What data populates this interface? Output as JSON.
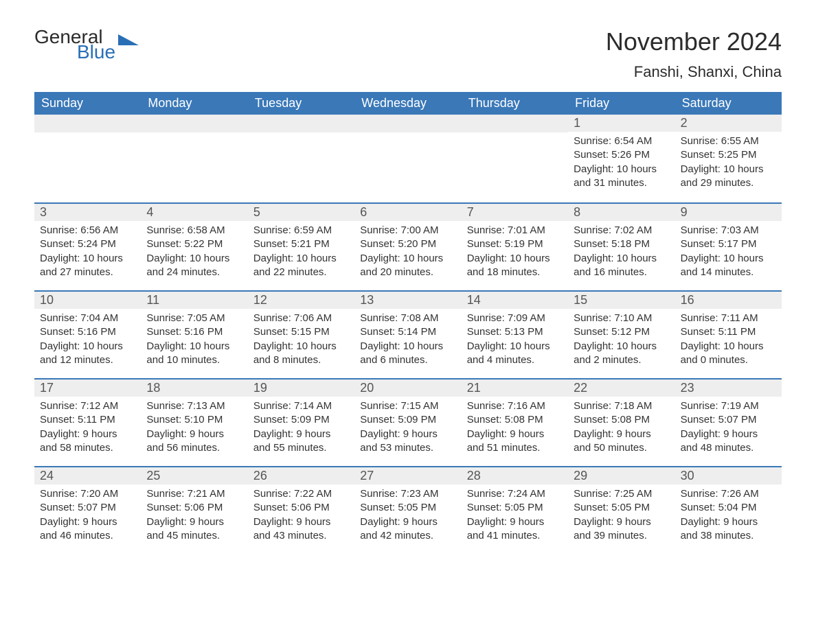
{
  "logo": {
    "general": "General",
    "blue": "Blue",
    "icon_fill": "#2a6fb5"
  },
  "title": "November 2024",
  "location": "Fanshi, Shanxi, China",
  "colors": {
    "header_bg": "#3a78b8",
    "header_text": "#ffffff",
    "daybar_bg": "#eeeeee",
    "row_divider": "#3a78b8",
    "body_text": "#333333"
  },
  "day_headers": [
    "Sunday",
    "Monday",
    "Tuesday",
    "Wednesday",
    "Thursday",
    "Friday",
    "Saturday"
  ],
  "weeks": [
    [
      null,
      null,
      null,
      null,
      null,
      {
        "n": "1",
        "sunrise": "Sunrise: 6:54 AM",
        "sunset": "Sunset: 5:26 PM",
        "dl1": "Daylight: 10 hours",
        "dl2": "and 31 minutes."
      },
      {
        "n": "2",
        "sunrise": "Sunrise: 6:55 AM",
        "sunset": "Sunset: 5:25 PM",
        "dl1": "Daylight: 10 hours",
        "dl2": "and 29 minutes."
      }
    ],
    [
      {
        "n": "3",
        "sunrise": "Sunrise: 6:56 AM",
        "sunset": "Sunset: 5:24 PM",
        "dl1": "Daylight: 10 hours",
        "dl2": "and 27 minutes."
      },
      {
        "n": "4",
        "sunrise": "Sunrise: 6:58 AM",
        "sunset": "Sunset: 5:22 PM",
        "dl1": "Daylight: 10 hours",
        "dl2": "and 24 minutes."
      },
      {
        "n": "5",
        "sunrise": "Sunrise: 6:59 AM",
        "sunset": "Sunset: 5:21 PM",
        "dl1": "Daylight: 10 hours",
        "dl2": "and 22 minutes."
      },
      {
        "n": "6",
        "sunrise": "Sunrise: 7:00 AM",
        "sunset": "Sunset: 5:20 PM",
        "dl1": "Daylight: 10 hours",
        "dl2": "and 20 minutes."
      },
      {
        "n": "7",
        "sunrise": "Sunrise: 7:01 AM",
        "sunset": "Sunset: 5:19 PM",
        "dl1": "Daylight: 10 hours",
        "dl2": "and 18 minutes."
      },
      {
        "n": "8",
        "sunrise": "Sunrise: 7:02 AM",
        "sunset": "Sunset: 5:18 PM",
        "dl1": "Daylight: 10 hours",
        "dl2": "and 16 minutes."
      },
      {
        "n": "9",
        "sunrise": "Sunrise: 7:03 AM",
        "sunset": "Sunset: 5:17 PM",
        "dl1": "Daylight: 10 hours",
        "dl2": "and 14 minutes."
      }
    ],
    [
      {
        "n": "10",
        "sunrise": "Sunrise: 7:04 AM",
        "sunset": "Sunset: 5:16 PM",
        "dl1": "Daylight: 10 hours",
        "dl2": "and 12 minutes."
      },
      {
        "n": "11",
        "sunrise": "Sunrise: 7:05 AM",
        "sunset": "Sunset: 5:16 PM",
        "dl1": "Daylight: 10 hours",
        "dl2": "and 10 minutes."
      },
      {
        "n": "12",
        "sunrise": "Sunrise: 7:06 AM",
        "sunset": "Sunset: 5:15 PM",
        "dl1": "Daylight: 10 hours",
        "dl2": "and 8 minutes."
      },
      {
        "n": "13",
        "sunrise": "Sunrise: 7:08 AM",
        "sunset": "Sunset: 5:14 PM",
        "dl1": "Daylight: 10 hours",
        "dl2": "and 6 minutes."
      },
      {
        "n": "14",
        "sunrise": "Sunrise: 7:09 AM",
        "sunset": "Sunset: 5:13 PM",
        "dl1": "Daylight: 10 hours",
        "dl2": "and 4 minutes."
      },
      {
        "n": "15",
        "sunrise": "Sunrise: 7:10 AM",
        "sunset": "Sunset: 5:12 PM",
        "dl1": "Daylight: 10 hours",
        "dl2": "and 2 minutes."
      },
      {
        "n": "16",
        "sunrise": "Sunrise: 7:11 AM",
        "sunset": "Sunset: 5:11 PM",
        "dl1": "Daylight: 10 hours",
        "dl2": "and 0 minutes."
      }
    ],
    [
      {
        "n": "17",
        "sunrise": "Sunrise: 7:12 AM",
        "sunset": "Sunset: 5:11 PM",
        "dl1": "Daylight: 9 hours",
        "dl2": "and 58 minutes."
      },
      {
        "n": "18",
        "sunrise": "Sunrise: 7:13 AM",
        "sunset": "Sunset: 5:10 PM",
        "dl1": "Daylight: 9 hours",
        "dl2": "and 56 minutes."
      },
      {
        "n": "19",
        "sunrise": "Sunrise: 7:14 AM",
        "sunset": "Sunset: 5:09 PM",
        "dl1": "Daylight: 9 hours",
        "dl2": "and 55 minutes."
      },
      {
        "n": "20",
        "sunrise": "Sunrise: 7:15 AM",
        "sunset": "Sunset: 5:09 PM",
        "dl1": "Daylight: 9 hours",
        "dl2": "and 53 minutes."
      },
      {
        "n": "21",
        "sunrise": "Sunrise: 7:16 AM",
        "sunset": "Sunset: 5:08 PM",
        "dl1": "Daylight: 9 hours",
        "dl2": "and 51 minutes."
      },
      {
        "n": "22",
        "sunrise": "Sunrise: 7:18 AM",
        "sunset": "Sunset: 5:08 PM",
        "dl1": "Daylight: 9 hours",
        "dl2": "and 50 minutes."
      },
      {
        "n": "23",
        "sunrise": "Sunrise: 7:19 AM",
        "sunset": "Sunset: 5:07 PM",
        "dl1": "Daylight: 9 hours",
        "dl2": "and 48 minutes."
      }
    ],
    [
      {
        "n": "24",
        "sunrise": "Sunrise: 7:20 AM",
        "sunset": "Sunset: 5:07 PM",
        "dl1": "Daylight: 9 hours",
        "dl2": "and 46 minutes."
      },
      {
        "n": "25",
        "sunrise": "Sunrise: 7:21 AM",
        "sunset": "Sunset: 5:06 PM",
        "dl1": "Daylight: 9 hours",
        "dl2": "and 45 minutes."
      },
      {
        "n": "26",
        "sunrise": "Sunrise: 7:22 AM",
        "sunset": "Sunset: 5:06 PM",
        "dl1": "Daylight: 9 hours",
        "dl2": "and 43 minutes."
      },
      {
        "n": "27",
        "sunrise": "Sunrise: 7:23 AM",
        "sunset": "Sunset: 5:05 PM",
        "dl1": "Daylight: 9 hours",
        "dl2": "and 42 minutes."
      },
      {
        "n": "28",
        "sunrise": "Sunrise: 7:24 AM",
        "sunset": "Sunset: 5:05 PM",
        "dl1": "Daylight: 9 hours",
        "dl2": "and 41 minutes."
      },
      {
        "n": "29",
        "sunrise": "Sunrise: 7:25 AM",
        "sunset": "Sunset: 5:05 PM",
        "dl1": "Daylight: 9 hours",
        "dl2": "and 39 minutes."
      },
      {
        "n": "30",
        "sunrise": "Sunrise: 7:26 AM",
        "sunset": "Sunset: 5:04 PM",
        "dl1": "Daylight: 9 hours",
        "dl2": "and 38 minutes."
      }
    ]
  ]
}
